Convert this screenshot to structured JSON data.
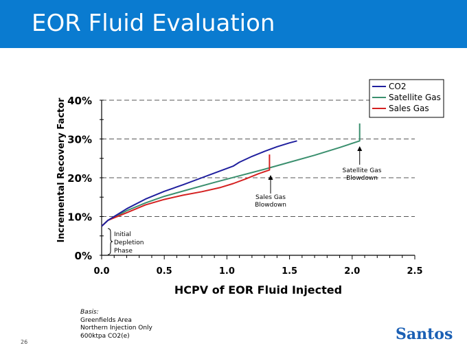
{
  "header": {
    "title": "EOR Fluid Evaluation",
    "bar_color": "#0a7bd0"
  },
  "chart_data": {
    "type": "line",
    "title": "",
    "xlabel": "HCPV of EOR Fluid Injected",
    "ylabel": "Incremental Recovery Factor",
    "xlim": [
      0,
      2.5
    ],
    "ylim": [
      0,
      40
    ],
    "x_ticks": [
      "0.0",
      "0.5",
      "1.0",
      "1.5",
      "2.0",
      "2.5"
    ],
    "y_ticks": [
      "0%",
      "10%",
      "20%",
      "30%",
      "40%"
    ],
    "legend_position": "top-right",
    "series": [
      {
        "name": "CO2",
        "color": "#1f1f9e",
        "x": [
          0,
          0.05,
          0.2,
          0.35,
          0.5,
          0.65,
          0.8,
          0.95,
          1.05,
          1.1,
          1.2,
          1.3,
          1.4,
          1.5,
          1.56
        ],
        "y": [
          7.5,
          9,
          12,
          14.5,
          16.5,
          18.2,
          20,
          21.8,
          23,
          24,
          25.5,
          26.8,
          28,
          29,
          29.5
        ]
      },
      {
        "name": "Satellite Gas",
        "color": "#3a8f6e",
        "x": [
          0,
          0.05,
          0.2,
          0.35,
          0.5,
          0.7,
          0.9,
          1.1,
          1.3,
          1.5,
          1.7,
          1.9,
          2.06,
          2.06
        ],
        "y": [
          7.5,
          9,
          11.5,
          13.5,
          15.2,
          17,
          18.8,
          20.5,
          22.2,
          24,
          25.8,
          27.8,
          29.5,
          34
        ]
      },
      {
        "name": "Sales Gas",
        "color": "#d42020",
        "x": [
          0,
          0.05,
          0.2,
          0.35,
          0.5,
          0.65,
          0.8,
          0.95,
          1.05,
          1.15,
          1.25,
          1.34,
          1.34
        ],
        "y": [
          7.5,
          9,
          11,
          13,
          14.4,
          15.5,
          16.4,
          17.5,
          18.5,
          19.7,
          21,
          22,
          26
        ]
      }
    ],
    "annotations": [
      {
        "text": "Satellite Gas Blowdown",
        "lines": [
          "Satellite Gas",
          "Blowdown"
        ]
      },
      {
        "text": "Sales Gas Blowdown",
        "lines": [
          "Sales Gas",
          "Blowdown"
        ]
      },
      {
        "text": "Initial Depletion Phase",
        "lines": [
          "Initial",
          "Depletion",
          "Phase"
        ]
      }
    ]
  },
  "basis": {
    "title": "Basis:",
    "lines": [
      "Greenfields Area",
      "Northern Injection Only",
      "600ktpa CO2(e)"
    ]
  },
  "page_number": "26",
  "logo_text": "Santos"
}
